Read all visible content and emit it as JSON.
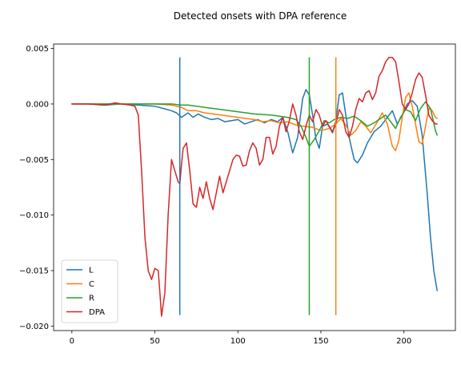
{
  "chart_data": {
    "type": "line",
    "title": "Detected onsets with DPA reference",
    "xlabel": "",
    "ylabel": "",
    "xlim": [
      -11,
      231
    ],
    "ylim": [
      -0.0204,
      0.0054
    ],
    "x_ticks": [
      0,
      50,
      100,
      150,
      200
    ],
    "x_tick_labels": [
      "0",
      "50",
      "100",
      "150",
      "200"
    ],
    "y_ticks": [
      0.005,
      0.0,
      -0.005,
      -0.01,
      -0.015,
      -0.02
    ],
    "y_tick_labels": [
      "0.005",
      "0.000",
      "−0.005",
      "−0.010",
      "−0.015",
      "−0.020"
    ],
    "grid": false,
    "legend": {
      "position": "lower-left",
      "entries": [
        "L",
        "C",
        "R",
        "DPA"
      ]
    },
    "onset_markers": [
      {
        "series": "L",
        "x": 65,
        "y_from": -0.019,
        "y_to": 0.0042,
        "color": "#1f77b4"
      },
      {
        "series": "R",
        "x": 143,
        "y_from": -0.019,
        "y_to": 0.0042,
        "color": "#2ca02c"
      },
      {
        "series": "C",
        "x": 159,
        "y_from": -0.019,
        "y_to": 0.0042,
        "color": "#ff7f0e"
      }
    ],
    "series": [
      {
        "name": "L",
        "color": "#1f77b4",
        "points": [
          [
            0,
            0.0
          ],
          [
            10,
            0.0
          ],
          [
            20,
            -0.0001
          ],
          [
            30,
            0.0
          ],
          [
            40,
            -0.0001
          ],
          [
            50,
            -0.0002
          ],
          [
            55,
            -0.0004
          ],
          [
            60,
            -0.0006
          ],
          [
            63,
            -0.0008
          ],
          [
            66,
            -0.0012
          ],
          [
            70,
            -0.0008
          ],
          [
            73,
            -0.0012
          ],
          [
            76,
            -0.0009
          ],
          [
            80,
            -0.0012
          ],
          [
            84,
            -0.0014
          ],
          [
            88,
            -0.0013
          ],
          [
            92,
            -0.0016
          ],
          [
            96,
            -0.0015
          ],
          [
            100,
            -0.0014
          ],
          [
            104,
            -0.0018
          ],
          [
            108,
            -0.0016
          ],
          [
            112,
            -0.0014
          ],
          [
            116,
            -0.0017
          ],
          [
            120,
            -0.0014
          ],
          [
            124,
            -0.0016
          ],
          [
            127,
            -0.0012
          ],
          [
            130,
            -0.0025
          ],
          [
            133,
            -0.0044
          ],
          [
            136,
            -0.003
          ],
          [
            139,
            0.0005
          ],
          [
            141,
            0.0013
          ],
          [
            143,
            0.0008
          ],
          [
            145,
            -0.001
          ],
          [
            147,
            -0.0032
          ],
          [
            149,
            -0.004
          ],
          [
            151,
            -0.002
          ],
          [
            154,
            -0.0018
          ],
          [
            157,
            -0.0026
          ],
          [
            159,
            -0.0015
          ],
          [
            161,
            0.0008
          ],
          [
            163,
            0.001
          ],
          [
            165,
            -0.001
          ],
          [
            167,
            -0.003
          ],
          [
            170,
            -0.005
          ],
          [
            172,
            -0.0053
          ],
          [
            175,
            -0.0046
          ],
          [
            178,
            -0.0035
          ],
          [
            182,
            -0.0025
          ],
          [
            186,
            -0.002
          ],
          [
            190,
            -0.0012
          ],
          [
            193,
            -0.0006
          ],
          [
            196,
            -0.0018
          ],
          [
            199,
            -0.001
          ],
          [
            202,
            0.0
          ],
          [
            205,
            0.0003
          ],
          [
            208,
            -0.0002
          ],
          [
            211,
            -0.0028
          ],
          [
            214,
            -0.008
          ],
          [
            216,
            -0.012
          ],
          [
            218,
            -0.015
          ],
          [
            220,
            -0.0168
          ]
        ]
      },
      {
        "name": "C",
        "color": "#ff7f0e",
        "points": [
          [
            0,
            0.0
          ],
          [
            20,
            0.0
          ],
          [
            40,
            0.0
          ],
          [
            50,
            0.0
          ],
          [
            60,
            -0.0001
          ],
          [
            66,
            -0.0003
          ],
          [
            70,
            -0.0006
          ],
          [
            75,
            -0.0006
          ],
          [
            80,
            -0.0008
          ],
          [
            85,
            -0.0009
          ],
          [
            90,
            -0.001
          ],
          [
            95,
            -0.0011
          ],
          [
            100,
            -0.0012
          ],
          [
            105,
            -0.0013
          ],
          [
            110,
            -0.0014
          ],
          [
            115,
            -0.0016
          ],
          [
            120,
            -0.0015
          ],
          [
            125,
            -0.0017
          ],
          [
            130,
            -0.0016
          ],
          [
            135,
            -0.0019
          ],
          [
            140,
            -0.002
          ],
          [
            145,
            -0.0021
          ],
          [
            150,
            -0.0024
          ],
          [
            155,
            -0.0022
          ],
          [
            159,
            -0.0018
          ],
          [
            162,
            -0.0013
          ],
          [
            165,
            -0.0019
          ],
          [
            168,
            -0.0028
          ],
          [
            171,
            -0.0024
          ],
          [
            174,
            -0.0016
          ],
          [
            177,
            -0.002
          ],
          [
            180,
            -0.0026
          ],
          [
            184,
            -0.0016
          ],
          [
            187,
            -0.0008
          ],
          [
            190,
            -0.0018
          ],
          [
            193,
            -0.0038
          ],
          [
            195,
            -0.0042
          ],
          [
            197,
            -0.0032
          ],
          [
            199,
            -0.0012
          ],
          [
            201,
            0.0006
          ],
          [
            203,
            0.001
          ],
          [
            205,
            -0.0002
          ],
          [
            207,
            -0.0018
          ],
          [
            209,
            -0.0034
          ],
          [
            211,
            -0.0036
          ],
          [
            213,
            -0.002
          ],
          [
            215,
            -0.0004
          ],
          [
            217,
            -0.0006
          ],
          [
            219,
            -0.0012
          ],
          [
            220,
            -0.0013
          ]
        ]
      },
      {
        "name": "R",
        "color": "#2ca02c",
        "points": [
          [
            0,
            0.0
          ],
          [
            20,
            0.0
          ],
          [
            40,
            0.0
          ],
          [
            50,
            0.0
          ],
          [
            60,
            0.0
          ],
          [
            66,
            -0.0001
          ],
          [
            70,
            -0.0001
          ],
          [
            80,
            -0.0003
          ],
          [
            90,
            -0.0005
          ],
          [
            100,
            -0.0007
          ],
          [
            110,
            -0.0009
          ],
          [
            120,
            -0.001
          ],
          [
            130,
            -0.0012
          ],
          [
            135,
            -0.0014
          ],
          [
            138,
            -0.002
          ],
          [
            141,
            -0.003
          ],
          [
            143,
            -0.0038
          ],
          [
            146,
            -0.0032
          ],
          [
            149,
            -0.0024
          ],
          [
            152,
            -0.0015
          ],
          [
            155,
            -0.0017
          ],
          [
            158,
            -0.0014
          ],
          [
            162,
            -0.0012
          ],
          [
            166,
            -0.0013
          ],
          [
            170,
            -0.0011
          ],
          [
            174,
            -0.0015
          ],
          [
            178,
            -0.002
          ],
          [
            182,
            -0.0017
          ],
          [
            186,
            -0.0013
          ],
          [
            189,
            -0.001
          ],
          [
            192,
            -0.0016
          ],
          [
            195,
            -0.0022
          ],
          [
            198,
            -0.0012
          ],
          [
            201,
            -0.0005
          ],
          [
            204,
            -0.0007
          ],
          [
            207,
            -0.0015
          ],
          [
            210,
            -0.0004
          ],
          [
            213,
            0.0002
          ],
          [
            216,
            -0.0004
          ],
          [
            219,
            -0.0024
          ],
          [
            220,
            -0.0028
          ]
        ]
      },
      {
        "name": "DPA",
        "color": "#d62728",
        "points": [
          [
            0,
            0.0
          ],
          [
            10,
            0.0
          ],
          [
            20,
            -0.0001
          ],
          [
            26,
            0.0001
          ],
          [
            30,
            0.0
          ],
          [
            35,
            -0.0001
          ],
          [
            38,
            -0.0002
          ],
          [
            40,
            -0.001
          ],
          [
            42,
            -0.006
          ],
          [
            44,
            -0.012
          ],
          [
            46,
            -0.015
          ],
          [
            48,
            -0.0158
          ],
          [
            50,
            -0.0148
          ],
          [
            52,
            -0.015
          ],
          [
            53,
            -0.017
          ],
          [
            54,
            -0.0191
          ],
          [
            56,
            -0.017
          ],
          [
            58,
            -0.01
          ],
          [
            60,
            -0.005
          ],
          [
            62,
            -0.006
          ],
          [
            64,
            -0.007
          ],
          [
            65,
            -0.0072
          ],
          [
            66,
            -0.0055
          ],
          [
            67,
            -0.004
          ],
          [
            69,
            -0.0035
          ],
          [
            71,
            -0.006
          ],
          [
            73,
            -0.009
          ],
          [
            75,
            -0.0093
          ],
          [
            77,
            -0.0075
          ],
          [
            79,
            -0.0085
          ],
          [
            81,
            -0.007
          ],
          [
            83,
            -0.0085
          ],
          [
            85,
            -0.0095
          ],
          [
            87,
            -0.008
          ],
          [
            89,
            -0.0065
          ],
          [
            91,
            -0.008
          ],
          [
            93,
            -0.007
          ],
          [
            95,
            -0.006
          ],
          [
            97,
            -0.005
          ],
          [
            99,
            -0.0046
          ],
          [
            101,
            -0.0047
          ],
          [
            103,
            -0.0056
          ],
          [
            105,
            -0.0055
          ],
          [
            107,
            -0.0042
          ],
          [
            109,
            -0.0035
          ],
          [
            111,
            -0.004
          ],
          [
            113,
            -0.0055
          ],
          [
            115,
            -0.005
          ],
          [
            117,
            -0.003
          ],
          [
            119,
            -0.003
          ],
          [
            121,
            -0.0045
          ],
          [
            123,
            -0.0038
          ],
          [
            125,
            -0.002
          ],
          [
            127,
            -0.0012
          ],
          [
            129,
            -0.0025
          ],
          [
            131,
            -0.0015
          ],
          [
            133,
            0.0
          ],
          [
            135,
            -0.001
          ],
          [
            137,
            -0.0025
          ],
          [
            139,
            -0.0032
          ],
          [
            141,
            -0.002
          ],
          [
            143,
            -0.001
          ],
          [
            145,
            -0.0016
          ],
          [
            147,
            -0.0005
          ],
          [
            149,
            -0.001
          ],
          [
            151,
            -0.002
          ],
          [
            153,
            -0.0015
          ],
          [
            155,
            -0.002
          ],
          [
            157,
            -0.0025
          ],
          [
            159,
            -0.0018
          ],
          [
            161,
            -0.0005
          ],
          [
            163,
            -0.001
          ],
          [
            165,
            -0.0025
          ],
          [
            167,
            -0.003
          ],
          [
            169,
            -0.002
          ],
          [
            171,
            -0.0005
          ],
          [
            173,
            0.0005
          ],
          [
            175,
            0.0002
          ],
          [
            177,
            0.001
          ],
          [
            179,
            0.0012
          ],
          [
            181,
            0.0004
          ],
          [
            183,
            0.001
          ],
          [
            185,
            0.0025
          ],
          [
            187,
            0.003
          ],
          [
            189,
            0.0038
          ],
          [
            191,
            0.0042
          ],
          [
            193,
            0.0042
          ],
          [
            195,
            0.0038
          ],
          [
            197,
            0.002
          ],
          [
            199,
            0.0
          ],
          [
            201,
            -0.0005
          ],
          [
            203,
            0.0
          ],
          [
            205,
            0.001
          ],
          [
            207,
            0.0022
          ],
          [
            209,
            0.0028
          ],
          [
            211,
            0.0024
          ],
          [
            213,
            0.0008
          ],
          [
            215,
            -0.001
          ],
          [
            217,
            -0.0015
          ],
          [
            219,
            -0.0018
          ],
          [
            220,
            -0.0018
          ]
        ]
      }
    ]
  }
}
